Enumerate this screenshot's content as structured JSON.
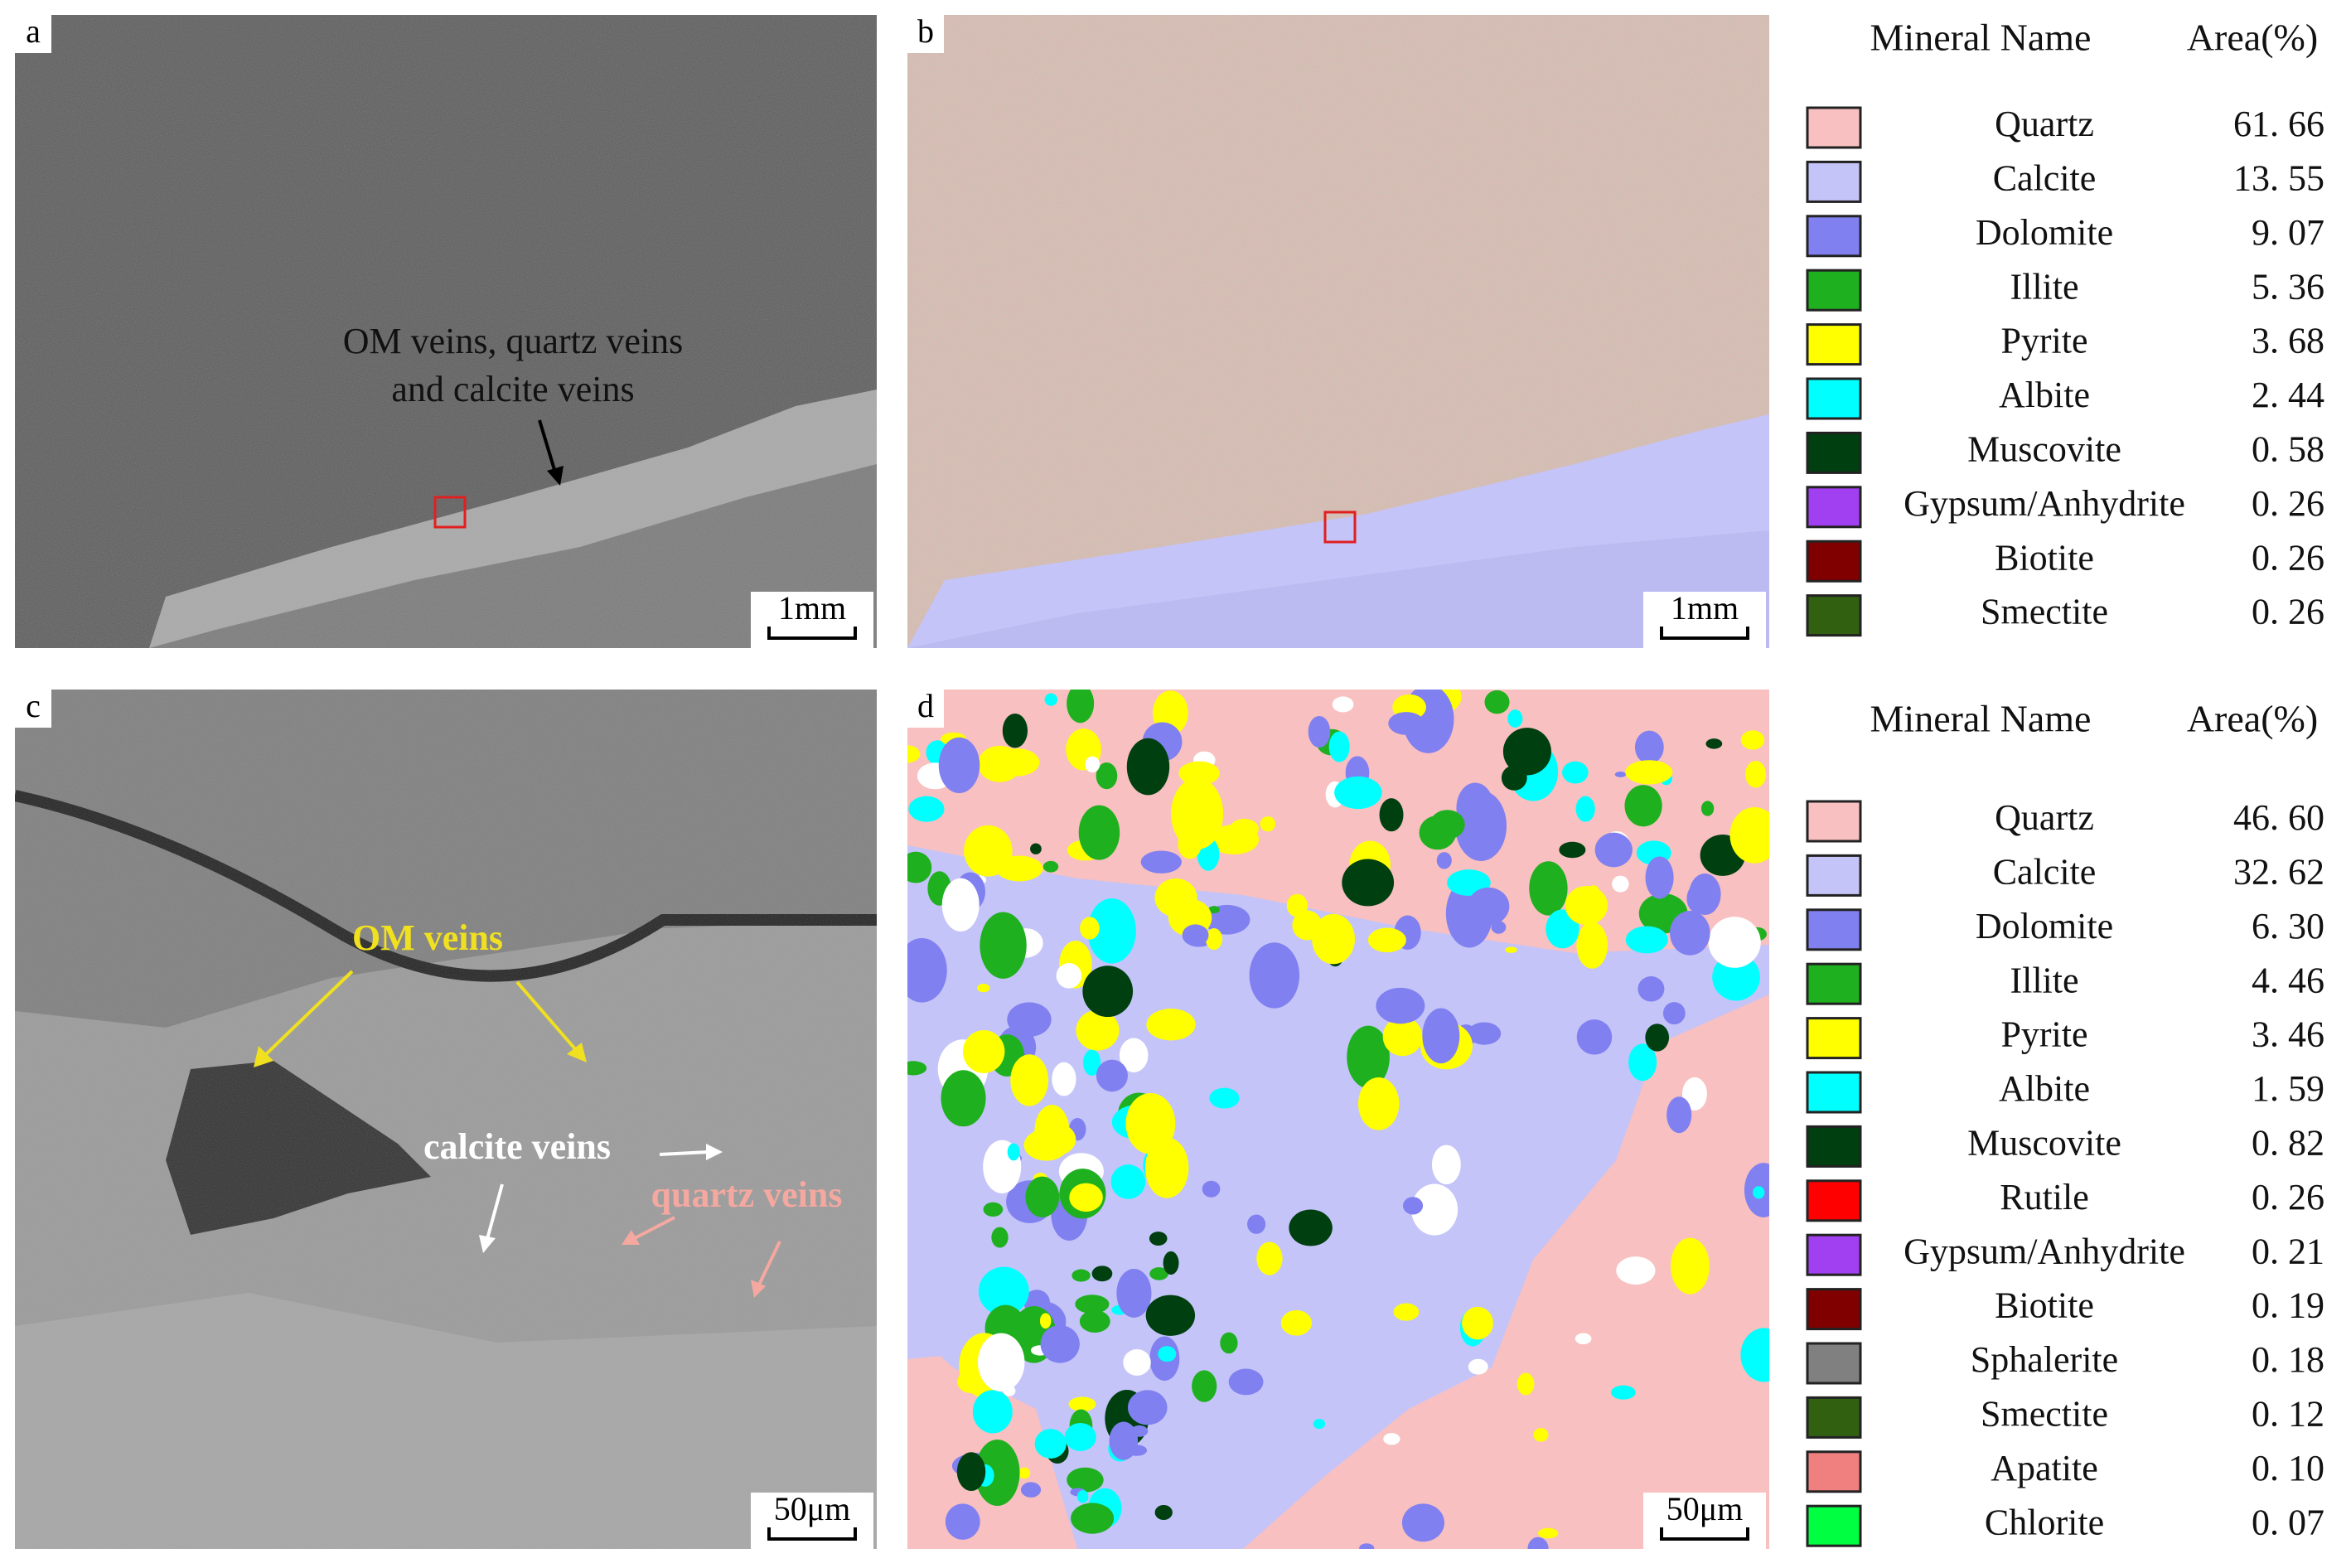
{
  "panels": [
    {
      "label": "a",
      "scale_bar": "1mm",
      "annotations": [
        "OM veins, quartz veins",
        "and calcite veins"
      ]
    },
    {
      "label": "b",
      "scale_bar": "1mm"
    },
    {
      "label": "c",
      "scale_bar": "50μm",
      "annotations": [
        "OM veins",
        "calcite veins",
        "quartz veins"
      ]
    },
    {
      "label": "d",
      "scale_bar": "50μm"
    }
  ],
  "legends": [
    {
      "header": [
        "Mineral Name",
        "Area(%)"
      ],
      "rows": [
        {
          "name": "Quartz",
          "area": "61. 66",
          "color": "#f8c0c0"
        },
        {
          "name": "Calcite",
          "area": "13. 55",
          "color": "#c4c4f8"
        },
        {
          "name": "Dolomite",
          "area": "9. 07",
          "color": "#8080f0"
        },
        {
          "name": "Illite",
          "area": "5. 36",
          "color": "#1fb01f"
        },
        {
          "name": "Pyrite",
          "area": "3. 68",
          "color": "#ffff00"
        },
        {
          "name": "Albite",
          "area": "2. 44",
          "color": "#00ffff"
        },
        {
          "name": "Muscovite",
          "area": "0. 58",
          "color": "#004010"
        },
        {
          "name": "Gypsum/Anhydrite",
          "area": "0. 26",
          "color": "#a040f0"
        },
        {
          "name": "Biotite",
          "area": "0. 26",
          "color": "#800000"
        },
        {
          "name": "Smectite",
          "area": "0. 26",
          "color": "#306010"
        }
      ]
    },
    {
      "header": [
        "Mineral Name",
        "Area(%)"
      ],
      "rows": [
        {
          "name": "Quartz",
          "area": "46. 60",
          "color": "#f8c0c0"
        },
        {
          "name": "Calcite",
          "area": "32. 62",
          "color": "#c4c4f8"
        },
        {
          "name": "Dolomite",
          "area": "6. 30",
          "color": "#8080f0"
        },
        {
          "name": "Illite",
          "area": "4. 46",
          "color": "#1fb01f"
        },
        {
          "name": "Pyrite",
          "area": "3. 46",
          "color": "#ffff00"
        },
        {
          "name": "Albite",
          "area": "1. 59",
          "color": "#00ffff"
        },
        {
          "name": "Muscovite",
          "area": "0. 82",
          "color": "#004010"
        },
        {
          "name": "Rutile",
          "area": "0. 26",
          "color": "#ff0000"
        },
        {
          "name": "Gypsum/Anhydrite",
          "area": "0. 21",
          "color": "#a040f0"
        },
        {
          "name": "Biotite",
          "area": "0. 19",
          "color": "#800000"
        },
        {
          "name": "Sphalerite",
          "area": "0. 18",
          "color": "#808080"
        },
        {
          "name": "Smectite",
          "area": "0. 12",
          "color": "#306010"
        },
        {
          "name": "Apatite",
          "area": "0. 10",
          "color": "#f08080"
        },
        {
          "name": "Chlorite",
          "area": "0. 07",
          "color": "#00ff40"
        }
      ]
    }
  ]
}
